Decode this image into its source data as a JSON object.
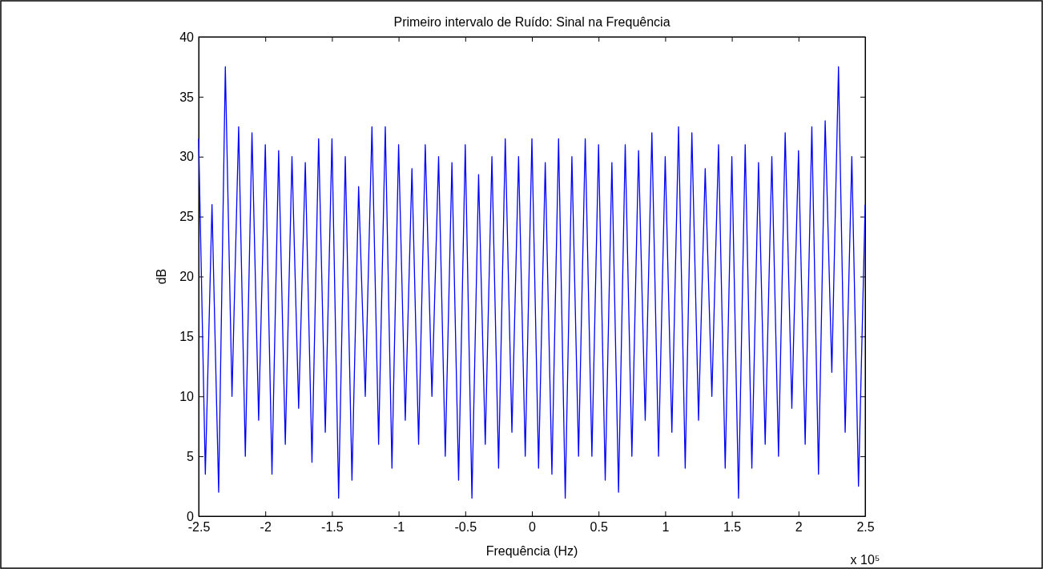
{
  "chart_data": {
    "type": "line",
    "title": "Primeiro intervalo de Ruído: Sinal na Frequência",
    "xlabel": "Frequência (Hz)",
    "ylabel": "dB",
    "annotations": [
      "x 10⁵"
    ],
    "x": [
      -2.5,
      -2.45,
      -2.4,
      -2.35,
      -2.3,
      -2.25,
      -2.2,
      -2.15,
      -2.1,
      -2.05,
      -2,
      -1.95,
      -1.9,
      -1.85,
      -1.8,
      -1.75,
      -1.7,
      -1.65,
      -1.6,
      -1.55,
      -1.5,
      -1.45,
      -1.4,
      -1.35,
      -1.3,
      -1.25,
      -1.2,
      -1.15,
      -1.1,
      -1.05,
      -1,
      -0.95,
      -0.9,
      -0.85,
      -0.8,
      -0.75,
      -0.7,
      -0.65,
      -0.6,
      -0.55,
      -0.5,
      -0.45,
      -0.4,
      -0.35,
      -0.3,
      -0.25,
      -0.2,
      -0.15,
      -0.1,
      -0.05,
      0,
      0.05,
      0.1,
      0.15,
      0.2,
      0.25,
      0.3,
      0.35,
      0.4,
      0.45,
      0.5,
      0.55,
      0.6,
      0.65,
      0.7,
      0.75,
      0.8,
      0.85,
      0.9,
      0.95,
      1,
      1.05,
      1.1,
      1.15,
      1.2,
      1.25,
      1.3,
      1.35,
      1.4,
      1.45,
      1.5,
      1.55,
      1.6,
      1.65,
      1.7,
      1.75,
      1.8,
      1.85,
      1.9,
      1.95,
      2,
      2.05,
      2.1,
      2.15,
      2.2,
      2.25,
      2.3,
      2.35,
      2.4,
      2.45,
      2.5
    ],
    "series": [
      {
        "color": "#0000ff",
        "values": [
          31.5,
          3.5,
          26,
          2,
          37.5,
          10,
          32.5,
          5,
          32,
          8,
          31,
          3.5,
          30.5,
          6,
          30,
          9,
          29.5,
          4.5,
          31.5,
          7,
          31.5,
          1.5,
          30,
          3,
          27.5,
          10,
          32.5,
          6,
          32.5,
          4,
          31,
          8,
          29,
          6,
          31,
          10,
          30,
          5,
          29.5,
          3,
          31,
          1.5,
          28.5,
          6,
          30,
          4,
          31.5,
          7,
          30,
          5,
          31.5,
          4,
          29.5,
          3.5,
          31.5,
          1.5,
          30,
          5,
          31.5,
          5,
          31,
          3,
          29.5,
          2,
          31,
          5,
          30.5,
          8,
          32,
          5,
          30,
          7,
          32.5,
          4,
          32,
          8,
          29,
          10,
          31,
          4,
          30,
          1.5,
          31,
          4,
          29.5,
          6,
          30,
          5,
          32,
          9,
          30.5,
          6,
          32.5,
          3.5,
          33,
          12,
          37.5,
          7,
          30,
          2.5,
          26
        ]
      }
    ],
    "xlim": [
      -2.5,
      2.5
    ],
    "xticks": [
      -2.5,
      -2,
      -1.5,
      -1,
      -0.5,
      0,
      0.5,
      1,
      1.5,
      2,
      2.5
    ],
    "ylim": [
      0,
      40
    ],
    "yticks": [
      0,
      5,
      10,
      15,
      20,
      25,
      30,
      35,
      40
    ],
    "grid": false
  }
}
